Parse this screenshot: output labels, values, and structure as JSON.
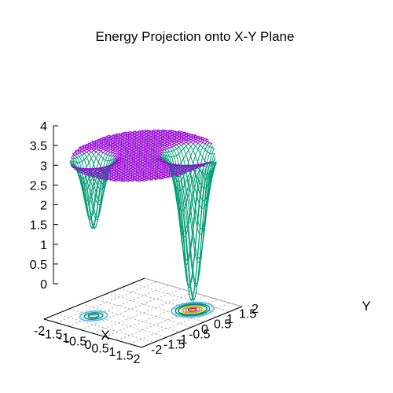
{
  "chart_data": {
    "type": "surface",
    "title": "Energy Projection onto X-Y Plane",
    "xlabel": "X",
    "ylabel": "Y",
    "zlabel": "",
    "xlim": [
      -2,
      2
    ],
    "ylim": [
      -2,
      2
    ],
    "zlim": [
      0,
      4
    ],
    "x_ticks": [
      "-2",
      "-1.5",
      "-1",
      "-0.5",
      "0",
      "0.5",
      "1",
      "1.5",
      "2"
    ],
    "y_ticks": [
      "-2",
      "-1.5",
      "-1",
      "-0.5",
      "0",
      "0.5",
      "1",
      "1.5",
      "2"
    ],
    "z_ticks": [
      "0",
      "0.5",
      "1",
      "1.5",
      "2",
      "2.5",
      "3",
      "3.5",
      "4"
    ],
    "grid": true,
    "surface": {
      "function": "z = min(4, 4 - 3.8*exp(-((x-1)^2+(y-1)^2)/0.18) - 1.8*exp(-((x+1)^2+(y+1)^2)/0.12))",
      "domain": "sqrt(x^2+y^2) <= 2.1",
      "clip_max": 4,
      "mesh_color": "#9400d3",
      "well_color": "#009e73"
    },
    "wells": [
      {
        "center": [
          1,
          1
        ],
        "depth": 3.8,
        "min_z": 0.2
      },
      {
        "center": [
          -1,
          -1
        ],
        "depth": 1.8,
        "min_z": 2.2
      }
    ],
    "contour_levels": [
      0.5,
      1.0,
      1.5,
      2.0,
      2.5,
      3.0,
      3.5
    ],
    "contour_colors": [
      "#e51e10",
      "#56b4e9",
      "#e69f00",
      "#f0e442",
      "#0072b2",
      "#009e73",
      "#56b4e9"
    ]
  }
}
